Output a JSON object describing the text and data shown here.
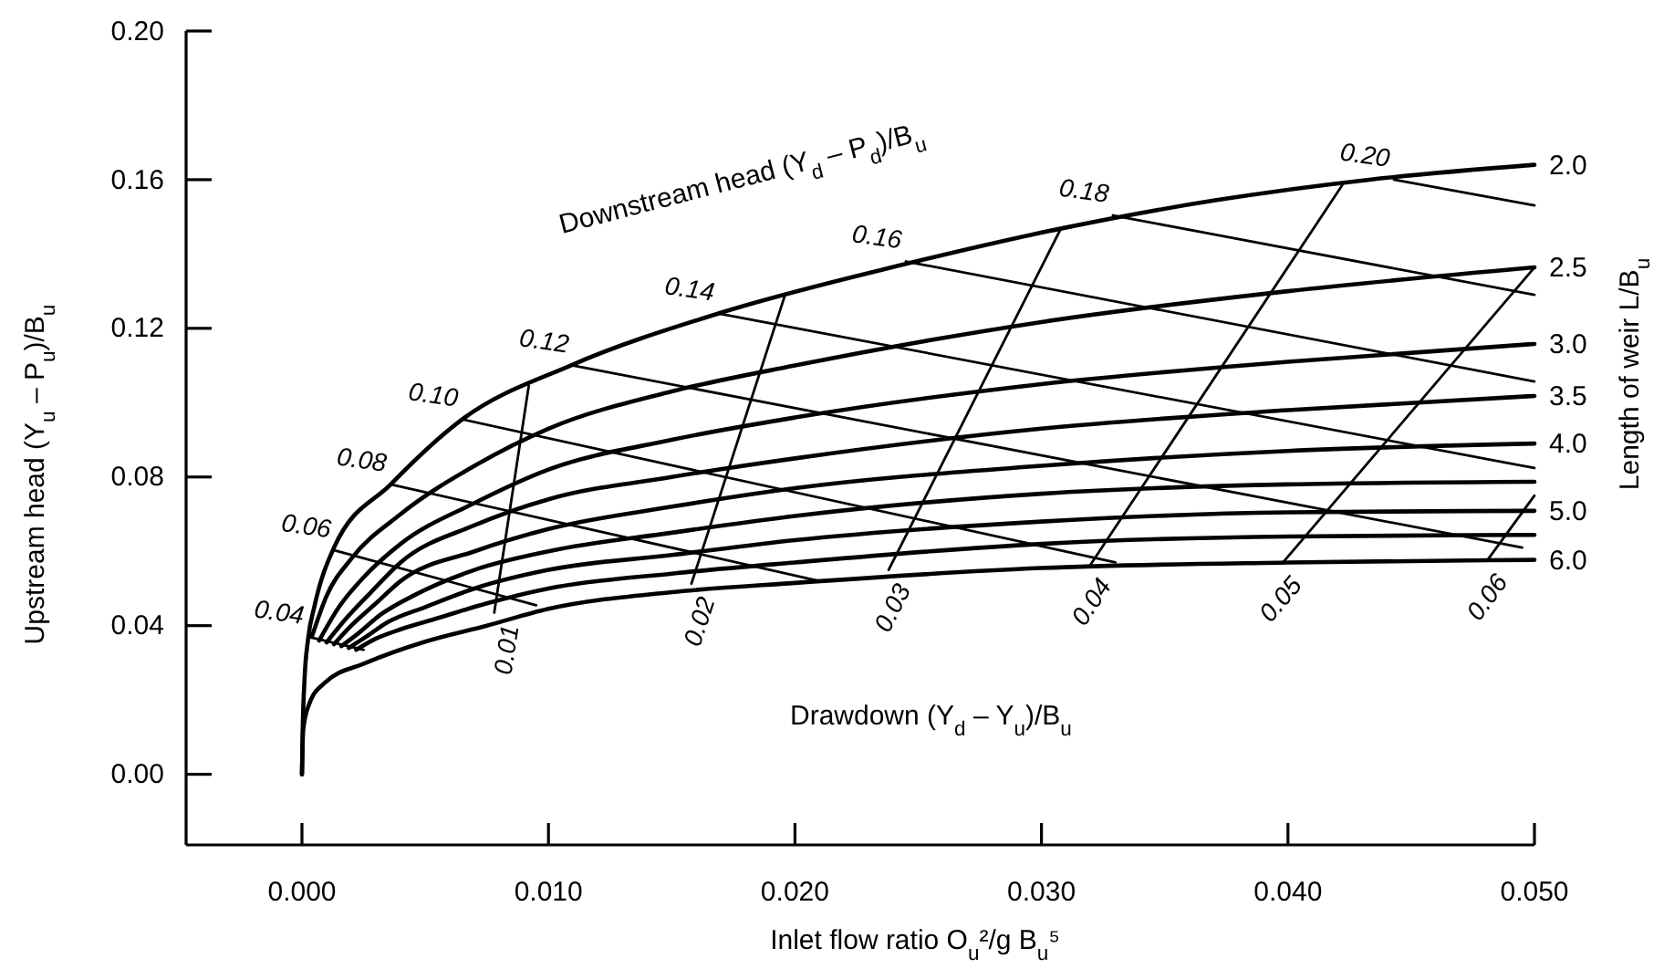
{
  "chart_data": {
    "type": "line",
    "xlabel": "Inlet flow ratio O$_{u}$²/g B$_{u}$⁵",
    "ylabel": "Upstream head (Y$_{u}$ – P$_{u}$)/B$_{u}$",
    "xlim": [
      -0.0047,
      0.05
    ],
    "ylim": [
      -0.019,
      0.2
    ],
    "xticks": [
      {
        "value": 0,
        "label": "0.000"
      },
      {
        "value": 0.01,
        "label": "0.010"
      },
      {
        "value": 0.02,
        "label": "0.020"
      },
      {
        "value": 0.03,
        "label": "0.030"
      },
      {
        "value": 0.04,
        "label": "0.040"
      },
      {
        "value": 0.05,
        "label": "0.050"
      }
    ],
    "yticks": [
      {
        "value": 0,
        "label": "0.00"
      },
      {
        "value": 0.04,
        "label": "0.04"
      },
      {
        "value": 0.08,
        "label": "0.08"
      },
      {
        "value": 0.12,
        "label": "0.12"
      },
      {
        "value": 0.16,
        "label": "0.16"
      },
      {
        "value": 0.2,
        "label": "0.20"
      }
    ],
    "grid": false,
    "annotations": [
      "Downstream head (Y$_{d}$ – P$_{d}$)/B$_{u}$",
      "Drawdown (Y$_{d}$ – Y$_{u}$)/B$_{u}$",
      "Length of weir  L/B$_{u}$"
    ],
    "series": [
      {
        "name": "2.0",
        "color": "#000000",
        "x": [
          0,
          3e-05,
          0.0001,
          0.00025,
          0.0005,
          0.0013,
          0.0036,
          0.0065,
          0.0109,
          0.0169,
          0.0243,
          0.0309,
          0.0371,
          0.0433,
          0.05
        ],
        "values": [
          0,
          0.012,
          0.025,
          0.0365,
          0.045,
          0.061,
          0.078,
          0.0955,
          0.11,
          0.124,
          0.137,
          0.147,
          0.1545,
          0.16,
          0.164
        ]
      },
      {
        "name": "2.5",
        "color": "#000000",
        "x": [
          0.0004,
          0.001,
          0.002,
          0.004,
          0.007,
          0.01,
          0.015,
          0.02,
          0.03,
          0.04,
          0.05
        ],
        "values": [
          0.037,
          0.048,
          0.058,
          0.07,
          0.083,
          0.093,
          0.103,
          0.11,
          0.1217,
          0.13,
          0.1364
        ]
      },
      {
        "name": "3.0",
        "color": "#000000",
        "x": [
          0.0007,
          0.0015,
          0.0025,
          0.004,
          0.007,
          0.01,
          0.015,
          0.02,
          0.03,
          0.04,
          0.05
        ],
        "values": [
          0.036,
          0.045,
          0.053,
          0.062,
          0.073,
          0.082,
          0.09,
          0.096,
          0.105,
          0.111,
          0.1158
        ]
      },
      {
        "name": "3.5",
        "color": "#000000",
        "x": [
          0.001,
          0.0018,
          0.0028,
          0.004,
          0.007,
          0.01,
          0.015,
          0.02,
          0.03,
          0.04,
          0.05
        ],
        "values": [
          0.0355,
          0.042,
          0.049,
          0.057,
          0.067,
          0.074,
          0.08,
          0.085,
          0.093,
          0.098,
          0.1018
        ]
      },
      {
        "name": "4.0",
        "color": "#000000",
        "x": [
          0.0013,
          0.002,
          0.003,
          0.004,
          0.007,
          0.01,
          0.015,
          0.02,
          0.03,
          0.04,
          0.05
        ],
        "values": [
          0.035,
          0.04,
          0.046,
          0.052,
          0.06,
          0.066,
          0.072,
          0.077,
          0.083,
          0.087,
          0.089
        ]
      },
      {
        "color": "#000000",
        "x": [
          0.0016,
          0.0023,
          0.0032,
          0.0045,
          0.007,
          0.01,
          0.015,
          0.02,
          0.03,
          0.04,
          0.05
        ],
        "values": [
          0.0345,
          0.038,
          0.043,
          0.048,
          0.055,
          0.06,
          0.065,
          0.0695,
          0.0755,
          0.078,
          0.0787
        ]
      },
      {
        "name": "5.0",
        "color": "#000000",
        "x": [
          0.0019,
          0.0026,
          0.0035,
          0.005,
          0.007,
          0.01,
          0.015,
          0.02,
          0.03,
          0.04,
          0.05
        ],
        "values": [
          0.034,
          0.037,
          0.041,
          0.045,
          0.05,
          0.055,
          0.059,
          0.063,
          0.068,
          0.0705,
          0.0709
        ]
      },
      {
        "color": "#000000",
        "x": [
          0.0022,
          0.003,
          0.004,
          0.0055,
          0.0075,
          0.01,
          0.015,
          0.02,
          0.03,
          0.04,
          0.05
        ],
        "values": [
          0.0335,
          0.0365,
          0.039,
          0.042,
          0.046,
          0.05,
          0.054,
          0.057,
          0.062,
          0.064,
          0.0644
        ]
      },
      {
        "name": "6.0",
        "color": "#000000",
        "x": [
          0,
          5e-05,
          0.0003,
          0.0009,
          0.0026,
          0.005,
          0.0075,
          0.01,
          0.015,
          0.02,
          0.03,
          0.04,
          0.05
        ],
        "values": [
          0,
          0.012,
          0.019,
          0.0245,
          0.03,
          0.0357,
          0.04,
          0.0445,
          0.049,
          0.0515,
          0.0555,
          0.057,
          0.0577
        ]
      },
      {
        "name": "0.04",
        "color": "#000000",
        "x": [
          0.00025,
          0.0025
        ],
        "values": [
          0.037,
          0.0335
        ]
      },
      {
        "name": "0.06",
        "color": "#000000",
        "x": [
          0.00135,
          0.0095
        ],
        "values": [
          0.0602,
          0.0455
        ]
      },
      {
        "name": "0.08",
        "color": "#000000",
        "x": [
          0.0036,
          0.021
        ],
        "values": [
          0.078,
          0.052
        ]
      },
      {
        "name": "0.10",
        "color": "#000000",
        "x": [
          0.0065,
          0.033
        ],
        "values": [
          0.0955,
          0.057
        ]
      },
      {
        "name": "0.12",
        "color": "#000000",
        "x": [
          0.011,
          0.0495
        ],
        "values": [
          0.11,
          0.061
        ]
      },
      {
        "name": "0.14",
        "color": "#000000",
        "x": [
          0.0169,
          0.05
        ],
        "values": [
          0.124,
          0.0824
        ]
      },
      {
        "name": "0.16",
        "color": "#000000",
        "x": [
          0.0245,
          0.05
        ],
        "values": [
          0.138,
          0.1057
        ]
      },
      {
        "name": "0.18",
        "color": "#000000",
        "x": [
          0.0329,
          0.05
        ],
        "values": [
          0.1504,
          0.129
        ]
      },
      {
        "name": "0.20",
        "color": "#000000",
        "x": [
          0.0443,
          0.05
        ],
        "values": [
          0.16,
          0.1531
        ]
      },
      {
        "name": "0.01",
        "color": "#000000",
        "x": [
          0.0078,
          0.0092
        ],
        "values": [
          0.0435,
          0.1045
        ]
      },
      {
        "name": "0.02",
        "color": "#000000",
        "x": [
          0.0158,
          0.0196
        ],
        "values": [
          0.0513,
          0.129
        ]
      },
      {
        "name": "0.03",
        "color": "#000000",
        "x": [
          0.0238,
          0.0308
        ],
        "values": [
          0.055,
          0.147
        ]
      },
      {
        "name": "0.04",
        "color": "#000000",
        "x": [
          0.032,
          0.0422
        ],
        "values": [
          0.0565,
          0.1585
        ]
      },
      {
        "name": "0.05",
        "color": "#000000",
        "x": [
          0.0398,
          0.05
        ],
        "values": [
          0.057,
          0.1364
        ]
      },
      {
        "name": "0.06",
        "color": "#000000",
        "x": [
          0.0481,
          0.05
        ],
        "values": [
          0.0577,
          0.075
        ]
      }
    ]
  }
}
